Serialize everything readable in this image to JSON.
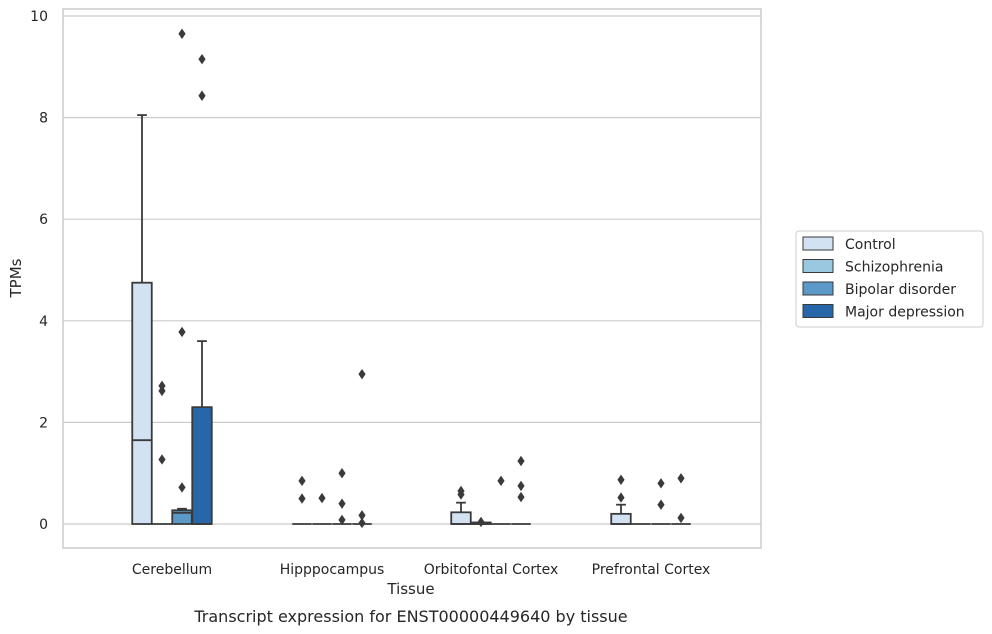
{
  "chart_data": {
    "type": "boxplot",
    "caption": "Transcript expression for ENST00000449640 by tissue",
    "xlabel": "Tissue",
    "ylabel": "TPMs",
    "ylim": [
      -0.45,
      10.15
    ],
    "yticks": [
      0,
      2,
      4,
      6,
      8,
      10
    ],
    "grid": "horizontal",
    "legend_position": "right",
    "categories": [
      "Cerebellum",
      "Hipppocampus",
      "Orbitofontal Cortex",
      "Prefrontal Cortex"
    ],
    "series": [
      {
        "name": "Control",
        "color": "#d2e2f3",
        "boxes": [
          {
            "q1": 0,
            "median": 1.65,
            "q3": 4.75,
            "whislo": 0,
            "whishi": 8.05,
            "fliers": []
          },
          {
            "q1": 0,
            "median": 0,
            "q3": 0,
            "whislo": 0,
            "whishi": 0,
            "fliers": [
              0.85,
              0.5
            ]
          },
          {
            "q1": 0,
            "median": 0,
            "q3": 0.23,
            "whislo": 0,
            "whishi": 0.42,
            "fliers": [
              0.65,
              0.58
            ]
          },
          {
            "q1": 0,
            "median": 0,
            "q3": 0.2,
            "whislo": 0,
            "whishi": 0.38,
            "fliers": [
              0.87,
              0.52
            ]
          }
        ]
      },
      {
        "name": "Schizophrenia",
        "color": "#9ac8e0",
        "boxes": [
          {
            "q1": 0,
            "median": 0,
            "q3": 0,
            "whislo": 0,
            "whishi": 0,
            "fliers": [
              2.72,
              2.62,
              1.27
            ]
          },
          {
            "q1": 0,
            "median": 0,
            "q3": 0,
            "whislo": 0,
            "whishi": 0,
            "fliers": [
              0.51
            ]
          },
          {
            "q1": 0,
            "median": 0,
            "q3": 0.03,
            "whislo": 0,
            "whishi": 0.03,
            "fliers": [
              0.04
            ]
          },
          {
            "q1": 0,
            "median": 0,
            "q3": 0,
            "whislo": 0,
            "whishi": 0,
            "fliers": []
          }
        ]
      },
      {
        "name": "Bipolar disorder",
        "color": "#5b9ac8",
        "boxes": [
          {
            "q1": 0,
            "median": 0.22,
            "q3": 0.27,
            "whislo": 0,
            "whishi": 0.3,
            "fliers": [
              3.78,
              0.72
            ]
          },
          {
            "q1": 0,
            "median": 0,
            "q3": 0,
            "whislo": 0,
            "whishi": 0,
            "fliers": [
              1.0,
              0.4,
              0.08
            ]
          },
          {
            "q1": 0,
            "median": 0,
            "q3": 0,
            "whislo": 0,
            "whishi": 0,
            "fliers": [
              0.85
            ]
          },
          {
            "q1": 0,
            "median": 0,
            "q3": 0,
            "whislo": 0,
            "whishi": 0,
            "fliers": [
              0.8,
              0.38
            ]
          }
        ]
      },
      {
        "name": "Major depression",
        "color": "#2767a9",
        "boxes": [
          {
            "q1": 0,
            "median": 0,
            "q3": 2.3,
            "whislo": 0,
            "whishi": 3.6,
            "fliers": [
              9.15,
              8.43
            ]
          },
          {
            "q1": 0,
            "median": 0,
            "q3": 0,
            "whislo": 0,
            "whishi": 0,
            "fliers": [
              2.95,
              0.17,
              0.02
            ]
          },
          {
            "q1": 0,
            "median": 0,
            "q3": 0,
            "whislo": 0,
            "whishi": 0,
            "fliers": [
              1.24,
              0.75,
              0.53
            ]
          },
          {
            "q1": 0,
            "median": 0,
            "q3": 0,
            "whislo": 0,
            "whishi": 0,
            "fliers": [
              0.9,
              0.12
            ]
          }
        ]
      }
    ],
    "extra_fliers": [
      {
        "series": "Schizophrenia",
        "category": "Cerebellum",
        "value": 9.65,
        "x_offset": 0.5
      }
    ]
  }
}
